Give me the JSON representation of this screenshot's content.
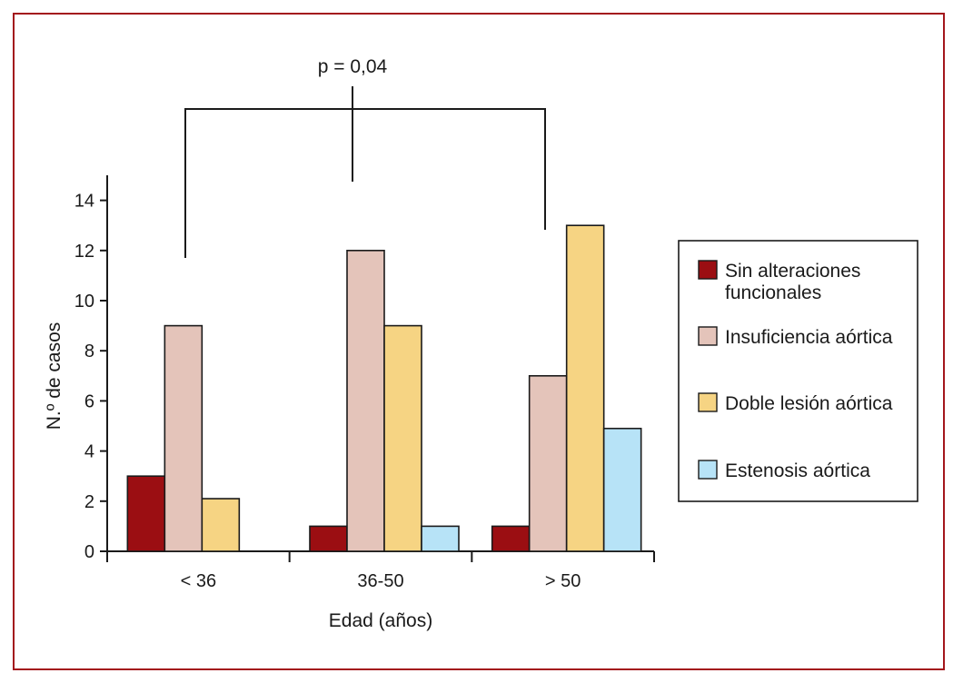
{
  "chart_data": {
    "type": "bar",
    "title": "",
    "xlabel": "Edad (años)",
    "ylabel": "N.º de casos",
    "ylim": [
      0,
      15
    ],
    "yticks": [
      0,
      2,
      4,
      6,
      8,
      10,
      12,
      14
    ],
    "categories": [
      "< 36",
      "36-50",
      "> 50"
    ],
    "series": [
      {
        "name": "Sin alteraciones funcionales",
        "color": "#9b0e12",
        "values": [
          3,
          1,
          1
        ]
      },
      {
        "name": "Insuficiencia aórtica",
        "color": "#e4c4ba",
        "values": [
          9,
          12,
          7
        ]
      },
      {
        "name": "Doble lesión aórtica",
        "color": "#f6d483",
        "values": [
          2.1,
          9,
          13
        ]
      },
      {
        "name": "Estenosis aórtica",
        "color": "#b7e3f7",
        "values": [
          0,
          1,
          4.9
        ]
      }
    ],
    "legend_lines": [
      [
        "Sin alteraciones",
        "funcionales"
      ],
      [
        "Insuficiencia aórtica"
      ],
      [
        "Doble lesión aórtica"
      ],
      [
        "Estenosis aórtica"
      ]
    ],
    "legend_position": "right",
    "annotation": "p = 0,04",
    "frame_color": "#a3161c"
  }
}
